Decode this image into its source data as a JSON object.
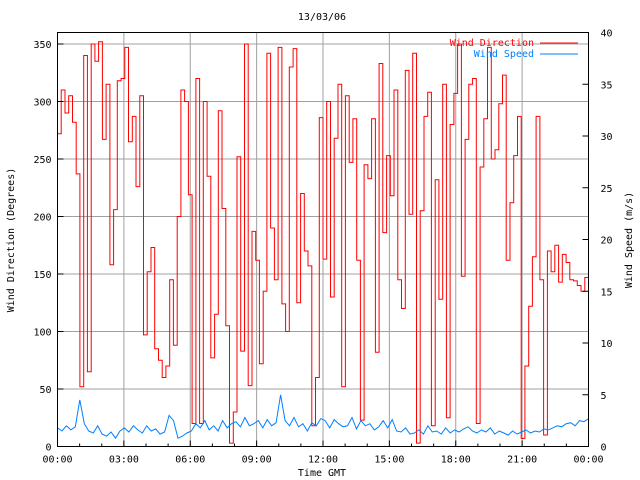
{
  "chart_data": {
    "type": "line",
    "title": "13/03/06",
    "xlabel": "Time GMT",
    "ylabel": "Wind Direction (Degrees)",
    "y2label": "Wind Speed (m/s)",
    "xlim": [
      0,
      24
    ],
    "ylim": [
      0,
      360
    ],
    "y2lim": [
      0,
      40
    ],
    "grid": true,
    "legend_position": "top-right",
    "x_ticks": [
      "00:00",
      "03:00",
      "06:00",
      "09:00",
      "12:00",
      "15:00",
      "18:00",
      "21:00",
      "00:00"
    ],
    "y_ticks": [
      0,
      50,
      100,
      150,
      200,
      250,
      300,
      350
    ],
    "y2_ticks": [
      0,
      5,
      10,
      15,
      20,
      25,
      30,
      35,
      40
    ],
    "series": [
      {
        "name": "Wind Direction",
        "axis": "left",
        "style": "steps",
        "color": "#ff0000",
        "start_hour": 0,
        "end_hour": 24,
        "values": [
          272,
          310,
          290,
          305,
          282,
          237,
          52,
          340,
          65,
          350,
          335,
          352,
          267,
          315,
          158,
          206,
          318,
          320,
          347,
          265,
          287,
          226,
          305,
          97,
          152,
          173,
          85,
          75,
          60,
          70,
          145,
          88,
          200,
          310,
          300,
          219,
          20,
          320,
          20,
          300,
          235,
          77,
          115,
          292,
          207,
          105,
          3,
          30,
          252,
          83,
          350,
          53,
          187,
          162,
          72,
          135,
          342,
          190,
          145,
          347,
          124,
          100,
          330,
          346,
          125,
          220,
          170,
          157,
          18,
          60,
          286,
          163,
          300,
          130,
          268,
          315,
          52,
          305,
          247,
          285,
          162,
          23,
          245,
          233,
          285,
          82,
          333,
          186,
          253,
          218,
          310,
          145,
          120,
          327,
          202,
          342,
          3,
          205,
          287,
          308,
          18,
          232,
          128,
          315,
          25,
          280,
          307,
          350,
          148,
          267,
          315,
          320,
          20,
          243,
          285,
          347,
          250,
          258,
          298,
          323,
          162,
          212,
          253,
          287,
          7,
          70,
          122,
          165,
          287,
          145,
          10,
          170,
          152,
          175,
          143,
          167,
          160,
          145,
          144,
          140,
          135,
          147
        ]
      },
      {
        "name": "Wind Speed",
        "axis": "right",
        "style": "line",
        "color": "#0080ff",
        "start_hour": 0,
        "end_hour": 24,
        "values": [
          1.8,
          1.5,
          2.0,
          1.6,
          1.9,
          4.5,
          2.2,
          1.5,
          1.3,
          2.0,
          1.2,
          1.0,
          1.4,
          0.8,
          1.5,
          1.8,
          1.4,
          2.0,
          1.6,
          1.3,
          2.0,
          1.5,
          1.7,
          1.2,
          1.4,
          3.0,
          2.5,
          0.8,
          1.0,
          1.3,
          1.5,
          2.2,
          1.8,
          2.5,
          1.6,
          2.0,
          1.5,
          2.5,
          1.8,
          2.2,
          2.4,
          1.9,
          2.8,
          2.0,
          2.2,
          2.5,
          1.8,
          2.6,
          2.0,
          2.3,
          5.0,
          2.5,
          2.0,
          2.8,
          1.9,
          2.2,
          1.5,
          2.3,
          2.0,
          2.7,
          2.5,
          1.8,
          2.6,
          2.2,
          1.9,
          2.0,
          2.8,
          1.7,
          2.5,
          2.0,
          2.2,
          1.6,
          1.9,
          2.5,
          1.8,
          2.6,
          1.5,
          1.4,
          1.8,
          1.2,
          1.3,
          1.6,
          1.2,
          2.0,
          1.4,
          1.5,
          1.2,
          1.8,
          1.3,
          1.6,
          1.4,
          1.7,
          1.9,
          1.5,
          1.3,
          1.6,
          1.4,
          1.8,
          1.2,
          1.5,
          1.3,
          1.1,
          1.5,
          1.2,
          1.4,
          1.6,
          1.3,
          1.5,
          1.4,
          1.7,
          1.6,
          1.8,
          2.0,
          1.9,
          2.2,
          2.3,
          2.0,
          2.5,
          2.4,
          2.7
        ]
      }
    ]
  }
}
